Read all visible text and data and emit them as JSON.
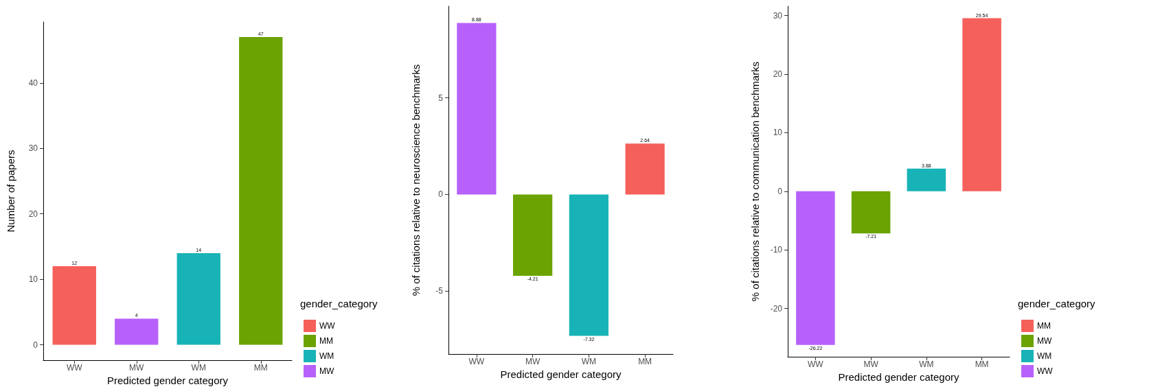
{
  "chart_data": [
    {
      "type": "bar",
      "categories": [
        "WW",
        "MW",
        "WM",
        "MM"
      ],
      "xlabel": "Predicted gender category",
      "ylabel": "Number of papers",
      "legend_title": "gender_category",
      "legend": "right",
      "grid": false,
      "data_labels": true,
      "ylim": [
        -2.35,
        49.3
      ],
      "yticks": [
        0,
        10,
        20,
        30,
        40
      ],
      "series": [
        {
          "name": "WW",
          "color": "#f5605b",
          "values": [
            12,
            null,
            null,
            null
          ]
        },
        {
          "name": "MM",
          "color": "#6ba302",
          "values": [
            null,
            null,
            null,
            47
          ]
        },
        {
          "name": "WM",
          "color": "#18b3b7",
          "values": [
            null,
            null,
            14,
            null
          ]
        },
        {
          "name": "MW",
          "color": "#b761fa",
          "values": [
            null,
            4,
            null,
            null
          ]
        }
      ]
    },
    {
      "type": "bar",
      "categories": [
        "WW",
        "MW",
        "WM",
        "MM"
      ],
      "xlabel": "Predicted gender category",
      "ylabel": "% of citations relative to neuroscience benchmarks",
      "legend": false,
      "grid": false,
      "data_labels": true,
      "ylim": [
        -8.26,
        9.75
      ],
      "yticks": [
        -5,
        0,
        5
      ],
      "values": [
        8.88,
        -4.21,
        -7.32,
        2.64
      ],
      "colors": [
        "#b761fa",
        "#6ba302",
        "#18b3b7",
        "#f5605b"
      ]
    },
    {
      "type": "bar",
      "categories": [
        "WW",
        "MW",
        "WM",
        "MM"
      ],
      "xlabel": "Predicted gender category",
      "ylabel": "% of citations relative to communication benchmarks",
      "legend_title": "gender_category",
      "legend": "right",
      "grid": false,
      "data_labels": true,
      "ylim": [
        -28.25,
        31.6
      ],
      "yticks": [
        -20,
        -10,
        0,
        10,
        20,
        30
      ],
      "series": [
        {
          "name": "MM",
          "color": "#f5605b",
          "values": [
            null,
            null,
            null,
            29.54
          ]
        },
        {
          "name": "MW",
          "color": "#6ba302",
          "values": [
            null,
            -7.21,
            null,
            null
          ]
        },
        {
          "name": "WM",
          "color": "#18b3b7",
          "values": [
            null,
            null,
            3.88,
            null
          ]
        },
        {
          "name": "WW",
          "color": "#b761fa",
          "values": [
            -26.22,
            null,
            null,
            null
          ]
        }
      ]
    }
  ]
}
